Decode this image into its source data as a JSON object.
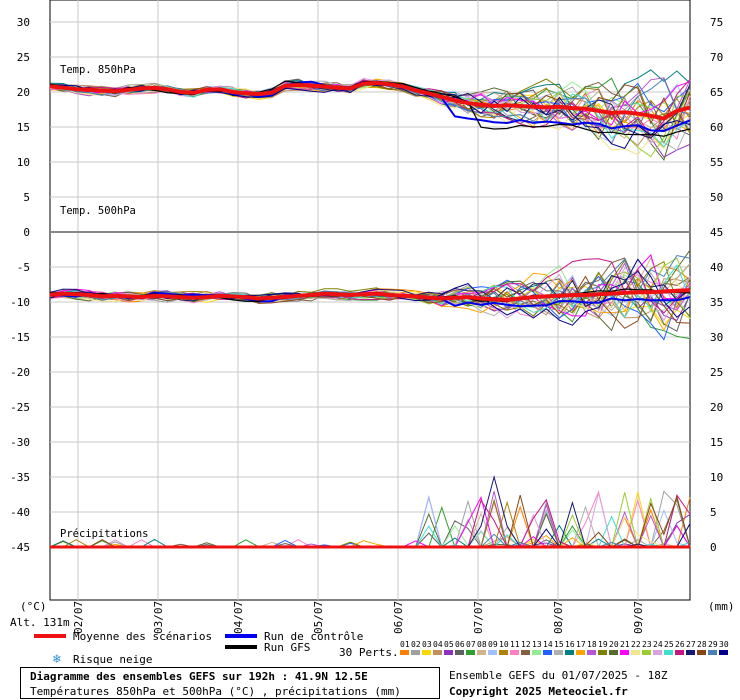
{
  "chart_data": {
    "type": "line",
    "x_dates": [
      "02/07",
      "03/07",
      "04/07",
      "05/07",
      "06/07",
      "07/07",
      "08/07",
      "09/07"
    ],
    "left_y_ticks": [
      "30",
      "25",
      "20",
      "15",
      "10",
      "5",
      "0",
      "-5",
      "-10",
      "-15",
      "-20",
      "-25",
      "-30",
      "-35",
      "-40",
      "-45"
    ],
    "right_y_ticks": [
      "75",
      "70",
      "65",
      "60",
      "55",
      "50",
      "45",
      "40",
      "35",
      "30",
      "25",
      "20",
      "15",
      "10",
      "5",
      "0"
    ],
    "left_unit": "(°C)",
    "right_unit": "(mm)",
    "panel_labels": [
      "Temp. 850hPa",
      "Temp. 500hPa",
      "Précipitations"
    ],
    "temp850_mean": [
      20.8,
      20.6,
      20.4,
      20.3,
      20.2,
      20.1,
      20.3,
      20.5,
      20.6,
      20.4,
      20.0,
      19.9,
      20.3,
      20.4,
      20.0,
      19.8,
      19.7,
      19.9,
      20.9,
      21.0,
      20.9,
      20.8,
      20.6,
      20.5,
      21.2,
      21.3,
      21.1,
      20.8,
      20.2,
      19.8,
      19.3,
      18.8,
      18.4,
      18.2,
      18.0,
      18.1,
      18.0,
      17.9,
      17.8,
      17.9,
      17.7,
      17.6,
      17.3,
      17.0,
      17.1,
      16.9,
      16.6,
      16.2,
      17.3,
      17.8
    ],
    "temp500_mean": [
      -9.0,
      -8.8,
      -8.9,
      -9.0,
      -9.2,
      -9.1,
      -9.2,
      -9.3,
      -9.1,
      -9.2,
      -9.3,
      -9.4,
      -9.3,
      -9.1,
      -9.2,
      -9.3,
      -9.5,
      -9.4,
      -9.3,
      -9.1,
      -9.0,
      -8.8,
      -8.9,
      -9.0,
      -8.9,
      -8.8,
      -9.0,
      -9.1,
      -9.2,
      -9.4,
      -9.5,
      -9.4,
      -9.3,
      -9.5,
      -9.6,
      -9.7,
      -9.5,
      -9.3,
      -9.2,
      -9.1,
      -9.0,
      -9.0,
      -8.9,
      -8.8,
      -8.7,
      -8.6,
      -8.6,
      -8.5,
      -8.4,
      -8.3
    ],
    "precip_peak_mm": 10,
    "legend": [
      {
        "label": "Moyenne des scénarios",
        "color": "#ee1111"
      },
      {
        "label": "Run de contrôle",
        "color": "#0000ee"
      },
      {
        "label": "Run GFS",
        "color": "#000000"
      }
    ],
    "snow_label": "Risque neige",
    "alt_label": "Alt. 131m",
    "perts_label": "30 Perts.",
    "perts": [
      "01",
      "02",
      "03",
      "04",
      "05",
      "06",
      "07",
      "08",
      "09",
      "10",
      "11",
      "12",
      "13",
      "14",
      "15",
      "16",
      "17",
      "18",
      "19",
      "20",
      "21",
      "22",
      "23",
      "24",
      "25",
      "26",
      "27",
      "28",
      "29",
      "30"
    ],
    "pert_colors": [
      "#ff7f00",
      "#a0a0a0",
      "#ffd700",
      "#c09060",
      "#9030c0",
      "#606060",
      "#30a030",
      "#d2b48c",
      "#a0c0ff",
      "#b08000",
      "#ff80c0",
      "#806040",
      "#90ee90",
      "#2060ff",
      "#b0b0b0",
      "#008080",
      "#ffa500",
      "#ba55d3",
      "#808000",
      "#556b2f",
      "#ff00ff",
      "#f0e68c",
      "#9acd32",
      "#dda0dd",
      "#40e0d0",
      "#c71585",
      "#191970",
      "#8b4513",
      "#4682b4",
      "#00008b"
    ],
    "title": "Diagramme des ensembles GEFS sur 192h : 41.9N 12.5E",
    "subtitle": "Températures 850hPa et 500hPa (°C) , précipitations (mm)",
    "ensemble_info": "Ensemble GEFS du 01/07/2025 - 18Z",
    "copyright": "Copyright 2025 Meteociel.fr"
  }
}
